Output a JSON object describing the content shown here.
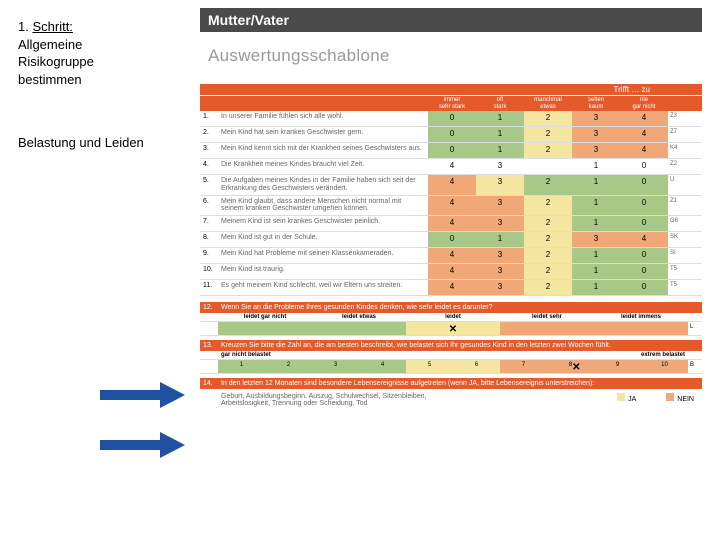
{
  "instruction": {
    "step": "Schritt:",
    "line1": "Allgemeine",
    "line2": "Risikogruppe",
    "line3": "bestimmen"
  },
  "sectionTitle": "Belastung und Leiden",
  "darkBar": "Mutter/Vater",
  "subtitle": "Auswertungsschablone",
  "trifft": "Trifft … zu",
  "headers": {
    "scale": [
      {
        "top": "immer",
        "bottom": "sehr stark"
      },
      {
        "top": "oft",
        "bottom": "stark"
      },
      {
        "top": "manchmal",
        "bottom": "etwas"
      },
      {
        "top": "selten",
        "bottom": "kaum"
      },
      {
        "top": "nie",
        "bottom": "gar nicht"
      }
    ]
  },
  "rows": [
    {
      "n": "1.",
      "desc": "In unserer Familie fühlen sich alle wohl.",
      "cells": [
        {
          "v": "0",
          "c": "g"
        },
        {
          "v": "1",
          "c": "g"
        },
        {
          "v": "2",
          "c": "y"
        },
        {
          "v": "3",
          "c": "o"
        },
        {
          "v": "4",
          "c": "o"
        }
      ],
      "side": "Z3"
    },
    {
      "n": "2.",
      "desc": "Mein Kind hat sein krankes Geschwister gern.",
      "cells": [
        {
          "v": "0",
          "c": "g"
        },
        {
          "v": "1",
          "c": "g"
        },
        {
          "v": "2",
          "c": "y"
        },
        {
          "v": "3",
          "c": "o"
        },
        {
          "v": "4",
          "c": "o"
        }
      ],
      "side": "Z7"
    },
    {
      "n": "3.",
      "desc": "Mein Kind kennt sich mit der Krankheit seines Geschwisters aus.",
      "cells": [
        {
          "v": "0",
          "c": "g"
        },
        {
          "v": "1",
          "c": "g"
        },
        {
          "v": "2",
          "c": "y"
        },
        {
          "v": "3",
          "c": "o"
        },
        {
          "v": "4",
          "c": "o"
        }
      ],
      "side": "K4"
    },
    {
      "n": "4.",
      "desc": "Die Krankheit meines Kindes braucht viel Zeit.",
      "cells": [
        {
          "v": "4",
          "c": "w"
        },
        {
          "v": "3",
          "c": "w"
        },
        {
          "v": "",
          "c": "w"
        },
        {
          "v": "1",
          "c": "w"
        },
        {
          "v": "0",
          "c": "w"
        }
      ],
      "side": "Z2"
    },
    {
      "n": "5.",
      "desc": "Die Aufgaben meines Kindes in der Familie haben sich seit der Erkrankung des Geschwisters verändert.",
      "cells": [
        {
          "v": "4",
          "c": "o"
        },
        {
          "v": "3",
          "c": "y"
        },
        {
          "v": "2",
          "c": "g"
        },
        {
          "v": "1",
          "c": "g"
        },
        {
          "v": "0",
          "c": "g"
        }
      ],
      "side": "U"
    },
    {
      "n": "6.",
      "desc": "Mein Kind glaubt, dass andere Menschen nicht normal mit seinem kranken Geschwister umgehen können.",
      "cells": [
        {
          "v": "4",
          "c": "o"
        },
        {
          "v": "3",
          "c": "o"
        },
        {
          "v": "2",
          "c": "y"
        },
        {
          "v": "1",
          "c": "g"
        },
        {
          "v": "0",
          "c": "g"
        }
      ],
      "side": "Z1"
    },
    {
      "n": "7.",
      "desc": "Meinem Kind ist sein krankes Geschwister peinlich.",
      "cells": [
        {
          "v": "4",
          "c": "o"
        },
        {
          "v": "3",
          "c": "o"
        },
        {
          "v": "2",
          "c": "y"
        },
        {
          "v": "1",
          "c": "g"
        },
        {
          "v": "0",
          "c": "g"
        }
      ],
      "side": "G6"
    },
    {
      "n": "8.",
      "desc": "Mein Kind ist gut in der Schule.",
      "cells": [
        {
          "v": "0",
          "c": "g"
        },
        {
          "v": "1",
          "c": "g"
        },
        {
          "v": "2",
          "c": "y"
        },
        {
          "v": "3",
          "c": "o"
        },
        {
          "v": "4",
          "c": "o"
        }
      ],
      "side": "SK"
    },
    {
      "n": "9.",
      "desc": "Mein Kind hat Probleme mit seinen Klassenkameraden.",
      "cells": [
        {
          "v": "4",
          "c": "o"
        },
        {
          "v": "3",
          "c": "o"
        },
        {
          "v": "2",
          "c": "y"
        },
        {
          "v": "1",
          "c": "g"
        },
        {
          "v": "0",
          "c": "g"
        }
      ],
      "side": "SI"
    },
    {
      "n": "10.",
      "desc": "Mein Kind ist traurig.",
      "cells": [
        {
          "v": "4",
          "c": "o"
        },
        {
          "v": "3",
          "c": "o"
        },
        {
          "v": "2",
          "c": "y"
        },
        {
          "v": "1",
          "c": "g"
        },
        {
          "v": "0",
          "c": "g"
        }
      ],
      "side": "T5"
    },
    {
      "n": "11.",
      "desc": "Es geht meinem Kind schlecht, weil wir Eltern uns streiten.",
      "cells": [
        {
          "v": "4",
          "c": "o"
        },
        {
          "v": "3",
          "c": "o"
        },
        {
          "v": "2",
          "c": "y"
        },
        {
          "v": "1",
          "c": "g"
        },
        {
          "v": "0",
          "c": "g"
        }
      ],
      "side": "T5"
    }
  ],
  "q12": {
    "n": "12.",
    "text": "Wenn Sie an die Probleme Ihres gesunden Kindes denken, wie sehr leidet es darunter?",
    "labels": [
      "leidet gar nicht",
      "leidet etwas",
      "leidet",
      "leidet sehr",
      "leidet immens"
    ],
    "side": "L"
  },
  "q13": {
    "n": "13.",
    "text": "Kreuzen Sie bitte die Zahl an, die am besten beschreibt, wie belastet sich Ihr gesundes Kind in den letzten zwei Wochen fühlt.",
    "sublabel_left": "gar nicht belastet",
    "sublabel_right": "extrem belastet",
    "values": [
      "1",
      "2",
      "3",
      "4",
      "5",
      "6",
      "7",
      "8",
      "9",
      "10"
    ],
    "side": "B"
  },
  "q14": {
    "n": "14.",
    "text": "In den letzten 12 Monaten sind besondere Lebensereignisse aufgetreten (wenn JA, bitte Lebensereignis unterstreichen):",
    "examples": "Geburt, Ausbildungsbeginn, Auszug, Schulwechsel, Sitzenbleiben,\nArbeitslosigkeit, Trennung oder Scheidung, Tod",
    "yes": "JA",
    "no": "NEIN"
  },
  "colors": {
    "orange_header": "#e55a2b",
    "green": "#a8c888",
    "yellow": "#f4e5a0",
    "coral": "#f0a878",
    "dark": "#4a4a4a",
    "arrow": "#2050a0",
    "ja_box": "#f4e5a0",
    "nein_box": "#f0a878"
  }
}
